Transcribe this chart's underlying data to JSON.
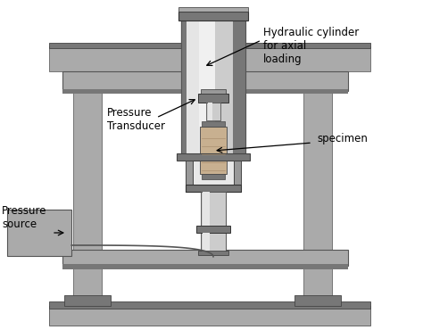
{
  "bg_color": "#ffffff",
  "frame_color": "#aaaaaa",
  "dark_gray": "#777777",
  "med_gray": "#999999",
  "silver": "#cccccc",
  "silver_dark": "#b0b0b0",
  "silver_light": "#e5e5e5",
  "silver_shine": "#f0f0f0",
  "labels": {
    "hydraulic": "Hydraulic cylinder\nfor axial\nloading",
    "pressure_transducer": "Pressure\nTransducer",
    "specimen": "specimen",
    "pressure_source": "Pressure\nsource"
  },
  "figsize": [
    4.74,
    3.7
  ],
  "dpi": 100
}
